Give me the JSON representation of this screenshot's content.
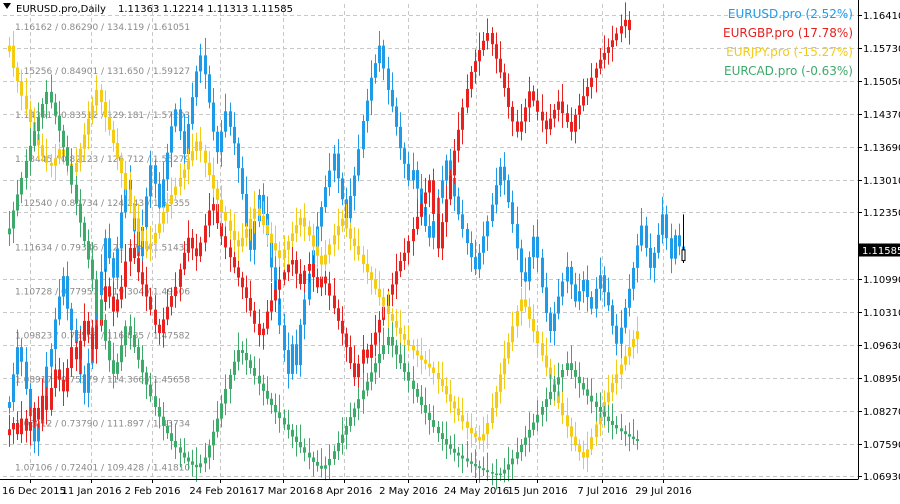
{
  "header": {
    "symbol": "EURUSD.pro,Daily",
    "ohlc": "1.11363 1.12214 1.11313 1.11585"
  },
  "chart_data": {
    "type": "line",
    "style": "candlestick-overlay",
    "title": "EURUSD.pro,Daily 1.11363 1.12214 1.11313 1.11585",
    "grid": true,
    "legend_placement": "top-right",
    "ylim": [
      1.0693,
      1.1641
    ],
    "y_ticks": [
      "1.16410",
      "1.15730",
      "1.15050",
      "1.14370",
      "1.13690",
      "1.13010",
      "1.12350",
      "1.11585",
      "1.10990",
      "1.10310",
      "1.09630",
      "1.08950",
      "1.08270",
      "1.07590",
      "1.06930"
    ],
    "current_price": "1.11585",
    "current_price_value": 1.11585,
    "x_ticks": [
      "16 Dec 2015",
      "11 Jan 2016",
      "2 Feb 2016",
      "24 Feb 2016",
      "17 Mar 2016",
      "8 Apr 2016",
      "2 May 2016",
      "24 May 2016",
      "15 Jun 2016",
      "7 Jul 2016",
      "29 Jul 2016"
    ],
    "left_scale_labels": [
      "1.16162 / 0.86290 / 134.119 / 1.61051",
      "1.15256 / 0.84901 / 131.650 / 1.59127",
      "1.14351 / 0.83512 / 129.181 / 1.57203",
      "1.13445 / 0.82123 / 126.712 / 1.55279",
      "1.12540 / 0.80734 / 124.243 / 1.53355",
      "1.11634 / 0.79346 / 121.774 / 1.51431",
      "1.10728 / 0.77957 / 119.304 / 1.49506",
      "1.09823 / 0.76568 / 116.835 / 1.47582",
      "1.08917 / 0.75179 / 114.366 / 1.45658",
      "1.08012 / 0.73790 / 111.897 / 1.43734",
      "1.07106 / 0.72401 / 109.428 / 1.41810"
    ],
    "left_scale_values": [
      1.16162,
      1.15256,
      1.14351,
      1.13445,
      1.1254,
      1.11634,
      1.10728,
      1.09823,
      1.08917,
      1.08012,
      1.07106
    ],
    "series": [
      {
        "name": "EURUSD.pro",
        "legend": "EURUSD.pro (2.52%)",
        "color": "#1E9BE8",
        "values": [
          1.0845,
          1.0902,
          1.0958,
          1.0928,
          1.0872,
          1.0816,
          1.0764,
          1.0801,
          1.0857,
          1.0918,
          1.0954,
          1.1015,
          1.1062,
          1.1104,
          1.1037,
          1.0993,
          1.0966,
          1.0902,
          1.0864,
          1.0925,
          1.0998,
          1.1065,
          1.1113,
          1.1182,
          1.1141,
          1.1101,
          1.1161,
          1.1235,
          1.1302,
          1.1252,
          1.1196,
          1.1145,
          1.1205,
          1.1268,
          1.1332,
          1.1294,
          1.1245,
          1.1303,
          1.1358,
          1.1412,
          1.1447,
          1.1402,
          1.1355,
          1.1417,
          1.1472,
          1.1525,
          1.1558,
          1.1519,
          1.1461,
          1.1401,
          1.1359,
          1.1401,
          1.1443,
          1.1411,
          1.1377,
          1.1326,
          1.1273,
          1.1206,
          1.1158,
          1.1217,
          1.1271,
          1.1232,
          1.1189,
          1.1122,
          1.1058,
          1.1003,
          1.0952,
          1.0903,
          1.0964,
          1.0921,
          1.1004,
          1.1056,
          1.1109,
          1.1157,
          1.1206,
          1.1246,
          1.1287,
          1.1321,
          1.1356,
          1.1305,
          1.1262,
          1.1223,
          1.1269,
          1.1311,
          1.1365,
          1.1423,
          1.1465,
          1.1512,
          1.1542,
          1.1578,
          1.1531,
          1.1487,
          1.1453,
          1.1411,
          1.1367,
          1.1335,
          1.1301,
          1.1322,
          1.1284,
          1.1246,
          1.1207,
          1.1183,
          1.1217,
          1.1265,
          1.1301,
          1.1342,
          1.1306,
          1.1268,
          1.1231,
          1.1201,
          1.1172,
          1.1143,
          1.1118,
          1.1152,
          1.1186,
          1.1217,
          1.1251,
          1.1291,
          1.1329,
          1.1301,
          1.1256,
          1.1211,
          1.1161,
          1.1112,
          1.1093,
          1.1143,
          1.1185,
          1.1142,
          1.1081,
          1.1028,
          1.0991,
          1.1027,
          1.1062,
          1.1093,
          1.1123,
          1.1087,
          1.1052,
          1.1073,
          1.1096,
          1.1061,
          1.1037,
          1.1078,
          1.1106,
          1.1071,
          1.1044,
          1.1002,
          1.0965,
          1.0998,
          1.1039,
          1.1078,
          1.1121,
          1.1167,
          1.1208,
          1.1162,
          1.1121,
          1.1152,
          1.1189,
          1.1231,
          1.1182,
          1.114,
          1.1188,
          1.1165,
          1.1158
        ]
      },
      {
        "name": "EURGBP.pro",
        "legend": "EURGBP.pro (17.78%)",
        "color": "#E8201E",
        "values": [
          1.0789,
          1.0802,
          1.0779,
          1.0811,
          1.0786,
          1.0804,
          1.0833,
          1.0809,
          1.0858,
          1.0829,
          1.0874,
          1.0912,
          1.0891,
          1.0867,
          1.0915,
          1.0958,
          1.0933,
          1.0971,
          1.1012,
          1.0984,
          1.0954,
          1.1002,
          1.1051,
          1.1083,
          1.1062,
          1.1031,
          1.1056,
          1.1082,
          1.1134,
          1.1162,
          1.1141,
          1.1112,
          1.1087,
          1.1062,
          1.1035,
          1.1004,
          1.0987,
          1.1015,
          1.1041,
          1.1063,
          1.1082,
          1.1118,
          1.1152,
          1.1183,
          1.1161,
          1.1145,
          1.1173,
          1.1208,
          1.1239,
          1.1252,
          1.1213,
          1.1186,
          1.1163,
          1.1143,
          1.1122,
          1.1101,
          1.1081,
          1.1059,
          1.1033,
          1.1006,
          1.0983,
          1.0996,
          1.1031,
          1.1054,
          1.1076,
          1.1097,
          1.1112,
          1.1128,
          1.1137,
          1.1109,
          1.1088,
          1.1115,
          1.1129,
          1.1102,
          1.1081,
          1.1103,
          1.1089,
          1.1064,
          1.1038,
          1.1012,
          1.0986,
          1.0958,
          1.0925,
          1.0896,
          1.0924,
          1.0953,
          1.0936,
          1.0963,
          1.0988,
          1.1014,
          1.1041,
          1.1066,
          1.1087,
          1.1114,
          1.1135,
          1.1152,
          1.1176,
          1.1201,
          1.1226,
          1.1253,
          1.1276,
          1.1301,
          1.1232,
          1.1161,
          1.1215,
          1.1262,
          1.1311,
          1.1362,
          1.1405,
          1.1451,
          1.1489,
          1.1524,
          1.1546,
          1.1569,
          1.1588,
          1.1604,
          1.1581,
          1.1551,
          1.1523,
          1.1491,
          1.1452,
          1.1422,
          1.1401,
          1.1422,
          1.1451,
          1.1484,
          1.1465,
          1.1442,
          1.1424,
          1.1406,
          1.1428,
          1.1446,
          1.1463,
          1.1439,
          1.1421,
          1.1401,
          1.1436,
          1.1455,
          1.1474,
          1.1493,
          1.1512,
          1.1531,
          1.1549,
          1.1563,
          1.1575,
          1.1589,
          1.1603,
          1.1618,
          1.1631,
          1.161
        ]
      },
      {
        "name": "EURJPY.pro",
        "legend": "EURJPY.pro (-15.27%)",
        "color": "#F5CC14",
        "values": [
          1.1578,
          1.1532,
          1.1505,
          1.1475,
          1.1447,
          1.1421,
          1.1396,
          1.1373,
          1.1351,
          1.1337,
          1.1331,
          1.1346,
          1.1365,
          1.1352,
          1.1335,
          1.1318,
          1.1337,
          1.1366,
          1.1395,
          1.1428,
          1.1455,
          1.1487,
          1.1462,
          1.1431,
          1.1405,
          1.1378,
          1.1346,
          1.1316,
          1.1282,
          1.1251,
          1.1223,
          1.1197,
          1.1176,
          1.1159,
          1.1171,
          1.1193,
          1.1212,
          1.1236,
          1.1252,
          1.1271,
          1.1288,
          1.1306,
          1.1323,
          1.1342,
          1.1361,
          1.1381,
          1.1362,
          1.1337,
          1.1312,
          1.1284,
          1.1261,
          1.1236,
          1.1218,
          1.1197,
          1.1178,
          1.1165,
          1.1183,
          1.1201,
          1.1222,
          1.1243,
          1.1228,
          1.1209,
          1.1191,
          1.1172,
          1.1157,
          1.1141,
          1.1158,
          1.1176,
          1.1192,
          1.1209,
          1.1224,
          1.1206,
          1.1188,
          1.1165,
          1.1146,
          1.1128,
          1.1148,
          1.1169,
          1.1188,
          1.1207,
          1.1222,
          1.1202,
          1.1181,
          1.1166,
          1.1148,
          1.1129,
          1.1112,
          1.1096,
          1.1078,
          1.1061,
          1.1043,
          1.1026,
          1.1012,
          1.0998,
          1.0985,
          1.0973,
          1.0962,
          1.0951,
          1.0941,
          1.0932,
          1.0924,
          1.0916,
          1.0905,
          1.0892,
          1.0878,
          1.0861,
          1.0846,
          1.0832,
          1.0818,
          1.0805,
          1.0792,
          1.0781,
          1.0773,
          1.0766,
          1.0779,
          1.0802,
          1.0833,
          1.0866,
          1.0902,
          1.0935,
          1.0968,
          1.1001,
          1.1032,
          1.1056,
          1.1041,
          1.1016,
          1.0991,
          1.0966,
          1.0941,
          1.0916,
          1.0892,
          1.0867,
          1.0843,
          1.0818,
          1.0795,
          1.0774,
          1.0756,
          1.0742,
          1.0731,
          1.0748,
          1.0773,
          1.0799,
          1.0822,
          1.0845,
          1.0865,
          1.0884,
          1.0902,
          1.0922,
          1.0939,
          1.0958,
          1.0975,
          1.0991
        ]
      },
      {
        "name": "EURCAD.pro",
        "legend": "EURCAD.pro (-0.63%)",
        "color": "#3DAA6A",
        "values": [
          1.1202,
          1.1239,
          1.1272,
          1.1306,
          1.1341,
          1.1372,
          1.1402,
          1.1431,
          1.1458,
          1.1483,
          1.1461,
          1.1434,
          1.1403,
          1.1369,
          1.1331,
          1.1292,
          1.1253,
          1.1214,
          1.1176,
          1.1138,
          1.1097,
          1.1056,
          1.1014,
          1.0971,
          1.0931,
          1.0903,
          1.0927,
          1.0962,
          1.1001,
          1.0983,
          1.0958,
          1.0932,
          1.0906,
          1.0881,
          1.0857,
          1.0835,
          1.0815,
          1.0796,
          1.0781,
          1.0765,
          1.0752,
          1.0741,
          1.0731,
          1.0723,
          1.0716,
          1.0711,
          1.0719,
          1.0731,
          1.0756,
          1.0784,
          1.0811,
          1.0842,
          1.0872,
          1.0901,
          1.0928,
          1.0952,
          1.0946,
          1.0931,
          1.0915,
          1.0899,
          1.0883,
          1.0868,
          1.0852,
          1.0839,
          1.0824,
          1.0812,
          1.0799,
          1.0788,
          1.0774,
          1.0763,
          1.0752,
          1.0741,
          1.0731,
          1.0722,
          1.0714,
          1.0708,
          1.0715,
          1.0728,
          1.0744,
          1.0761,
          1.0778,
          1.0796,
          1.0814,
          1.0832,
          1.0851,
          1.0869,
          1.0887,
          1.0906,
          1.0925,
          1.0944,
          1.0962,
          1.0979,
          1.0961,
          1.0943,
          1.0925,
          1.0907,
          1.0889,
          1.0872,
          1.0856,
          1.0839,
          1.0823,
          1.0808,
          1.0794,
          1.0781,
          1.0769,
          1.0758,
          1.0749,
          1.0741,
          1.0735,
          1.0729,
          1.0723,
          1.0718,
          1.0713,
          1.0709,
          1.0705,
          1.0701,
          1.0698,
          1.0695,
          1.0698,
          1.0706,
          1.0717,
          1.0729,
          1.0742,
          1.0757,
          1.0772,
          1.0788,
          1.0803,
          1.0819,
          1.0835,
          1.0851,
          1.0866,
          1.0881,
          1.0896,
          1.0911,
          1.0925,
          1.0911,
          1.0897,
          1.0884,
          1.0871,
          1.0858,
          1.0846,
          1.0835,
          1.0825,
          1.0815,
          1.0806,
          1.0798,
          1.0791,
          1.0785,
          1.0779,
          1.0774,
          1.0769,
          1.0765
        ]
      }
    ]
  }
}
